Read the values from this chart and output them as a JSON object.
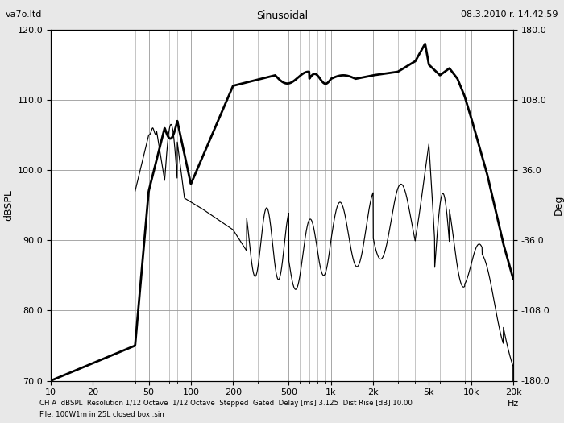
{
  "title_left": "va7o.ltd",
  "title_center": "Sinusoidal",
  "title_right": "08.3.2010 r. 14.42.59",
  "ylabel_left": "dBSPL",
  "ylabel_right": "Deg",
  "footer1": "CH A  dBSPL  Resolution 1/12 Octave  1/12 Octave  Stepped  Gated  Delay [ms] 3.125  Dist Rise [dB] 10.00",
  "footer2": "File: 100W1m in 25L closed box .sin",
  "xlim": [
    10,
    20000
  ],
  "ylim_left": [
    70,
    120
  ],
  "ylim_right": [
    -180,
    180
  ],
  "yticks_left": [
    70.0,
    80.0,
    90.0,
    100.0,
    110.0,
    120.0
  ],
  "yticks_right": [
    -180.0,
    -108.0,
    -36.0,
    36.0,
    108.0,
    180.0
  ],
  "xticks": [
    10,
    20,
    50,
    100,
    200,
    500,
    1000,
    2000,
    5000,
    10000,
    20000
  ],
  "xtick_labels": [
    "10",
    "20",
    "50",
    "100",
    "200",
    "500",
    "1k",
    "2k",
    "5k",
    "10k",
    "20k"
  ],
  "bg_color": "#e8e8e8",
  "plot_bg_color": "#ffffff",
  "grid_color": "#999999",
  "line_color": "#000000"
}
